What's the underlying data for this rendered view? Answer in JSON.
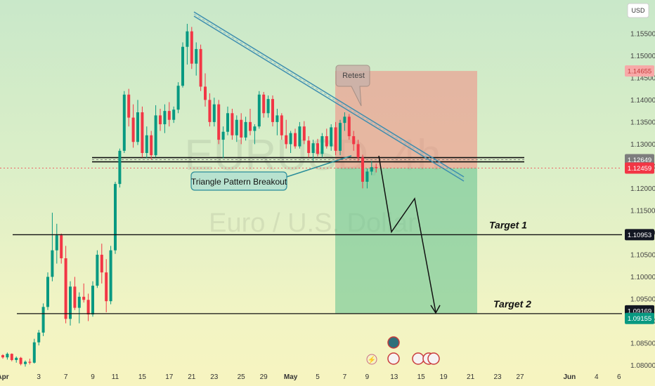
{
  "chart_data": {
    "type": "candlestick",
    "currency": "USD",
    "watermark": {
      "symbol": "EURUSD, 4h",
      "description": "Euro / U.S. Dollar"
    },
    "y_axis": {
      "range": [
        1.0785,
        1.161
      ],
      "ticks": [
        "1.15500",
        "1.15000",
        "1.14500",
        "1.14000",
        "1.13500",
        "1.13000",
        "1.12500",
        "1.12000",
        "1.11500",
        "1.11000",
        "1.10500",
        "1.10000",
        "1.09500",
        "1.09000",
        "1.08500",
        "1.08000"
      ]
    },
    "x_axis": {
      "ticks": [
        {
          "label": "Apr",
          "bold": true,
          "index": 0
        },
        {
          "label": "3",
          "index": 8
        },
        {
          "label": "7",
          "index": 14
        },
        {
          "label": "9",
          "index": 20
        },
        {
          "label": "11",
          "index": 25
        },
        {
          "label": "15",
          "index": 31
        },
        {
          "label": "17",
          "index": 37
        },
        {
          "label": "21",
          "index": 42
        },
        {
          "label": "23",
          "index": 47
        },
        {
          "label": "25",
          "index": 53
        },
        {
          "label": "29",
          "index": 58
        },
        {
          "label": "May",
          "bold": true,
          "index": 64
        },
        {
          "label": "5",
          "index": 70
        },
        {
          "label": "7",
          "index": 76
        },
        {
          "label": "9",
          "index": 81
        },
        {
          "label": "13",
          "index": 87
        },
        {
          "label": "15",
          "index": 93
        },
        {
          "label": "19",
          "index": 98
        },
        {
          "label": "21",
          "index": 104
        },
        {
          "label": "23",
          "index": 110
        },
        {
          "label": "27",
          "index": 115
        },
        {
          "label": "Jun",
          "bold": true,
          "index": 126
        },
        {
          "label": "4",
          "index": 132
        },
        {
          "label": "6",
          "index": 137
        }
      ]
    },
    "candles": [
      [
        1.0823,
        1.0825,
        1.0815,
        1.0818
      ],
      [
        1.0818,
        1.0829,
        1.0813,
        1.0826
      ],
      [
        1.0826,
        1.0827,
        1.0809,
        1.0812
      ],
      [
        1.0812,
        1.082,
        1.0806,
        1.0817
      ],
      [
        1.0817,
        1.0819,
        1.08,
        1.0803
      ],
      [
        1.0803,
        1.0811,
        1.0797,
        1.0808
      ],
      [
        1.0808,
        1.0815,
        1.0802,
        1.0806
      ],
      [
        1.0806,
        1.086,
        1.0804,
        1.0852
      ],
      [
        1.0852,
        1.088,
        1.0845,
        1.0874
      ],
      [
        1.0874,
        1.094,
        1.0866,
        1.0932
      ],
      [
        1.0932,
        1.101,
        1.0925,
        1.1
      ],
      [
        1.1,
        1.1145,
        1.099,
        1.106
      ],
      [
        1.106,
        1.112,
        1.103,
        1.1094
      ],
      [
        1.1094,
        1.1098,
        1.103,
        1.1042
      ],
      [
        1.1042,
        1.107,
        1.0895,
        1.0905
      ],
      [
        1.0905,
        1.099,
        1.089,
        1.0978
      ],
      [
        1.0978,
        1.1,
        1.0925,
        1.093
      ],
      [
        1.093,
        1.0965,
        1.0895,
        1.0955
      ],
      [
        1.0955,
        1.0985,
        1.0942,
        1.0948
      ],
      [
        1.0948,
        1.0962,
        1.09,
        1.0915
      ],
      [
        1.0915,
        1.099,
        1.091,
        1.098
      ],
      [
        1.098,
        1.106,
        1.0975,
        1.105
      ],
      [
        1.105,
        1.1075,
        1.0985,
        1.101
      ],
      [
        1.101,
        1.104,
        1.092,
        1.0945
      ],
      [
        1.0945,
        1.107,
        1.0938,
        1.106
      ],
      [
        1.106,
        1.1215,
        1.1052,
        1.121
      ],
      [
        1.121,
        1.129,
        1.1202,
        1.1285
      ],
      [
        1.1285,
        1.142,
        1.128,
        1.1412
      ],
      [
        1.1412,
        1.1425,
        1.134,
        1.136
      ],
      [
        1.136,
        1.139,
        1.1292,
        1.1305
      ],
      [
        1.1305,
        1.14,
        1.1298,
        1.1372
      ],
      [
        1.1372,
        1.1385,
        1.127,
        1.128
      ],
      [
        1.128,
        1.134,
        1.1268,
        1.132
      ],
      [
        1.132,
        1.133,
        1.1265,
        1.1275
      ],
      [
        1.1275,
        1.1388,
        1.127,
        1.1365
      ],
      [
        1.1365,
        1.138,
        1.133,
        1.1345
      ],
      [
        1.1345,
        1.139,
        1.1325,
        1.1375
      ],
      [
        1.1375,
        1.1395,
        1.134,
        1.1355
      ],
      [
        1.1355,
        1.1385,
        1.1348,
        1.1378
      ],
      [
        1.1378,
        1.144,
        1.137,
        1.1432
      ],
      [
        1.1432,
        1.153,
        1.1428,
        1.152
      ],
      [
        1.152,
        1.1572,
        1.148,
        1.1555
      ],
      [
        1.1555,
        1.1565,
        1.147,
        1.1482
      ],
      [
        1.1482,
        1.153,
        1.1455,
        1.1515
      ],
      [
        1.1515,
        1.1525,
        1.142,
        1.143
      ],
      [
        1.143,
        1.146,
        1.1385,
        1.14
      ],
      [
        1.14,
        1.1415,
        1.134,
        1.135
      ],
      [
        1.135,
        1.1405,
        1.134,
        1.139
      ],
      [
        1.139,
        1.14,
        1.13,
        1.131
      ],
      [
        1.131,
        1.134,
        1.1268,
        1.1328
      ],
      [
        1.1328,
        1.1385,
        1.132,
        1.137
      ],
      [
        1.137,
        1.138,
        1.131,
        1.132
      ],
      [
        1.132,
        1.1365,
        1.1305,
        1.1355
      ],
      [
        1.1355,
        1.137,
        1.13,
        1.1315
      ],
      [
        1.1315,
        1.1362,
        1.1308,
        1.135
      ],
      [
        1.135,
        1.138,
        1.132,
        1.133
      ],
      [
        1.133,
        1.1345,
        1.13,
        1.134
      ],
      [
        1.134,
        1.142,
        1.1335,
        1.1412
      ],
      [
        1.1412,
        1.1418,
        1.136,
        1.137
      ],
      [
        1.137,
        1.141,
        1.136,
        1.1402
      ],
      [
        1.1402,
        1.141,
        1.134,
        1.135
      ],
      [
        1.135,
        1.138,
        1.132,
        1.1365
      ],
      [
        1.1365,
        1.137,
        1.131,
        1.132
      ],
      [
        1.132,
        1.1355,
        1.129,
        1.13
      ],
      [
        1.13,
        1.133,
        1.128,
        1.1325
      ],
      [
        1.1325,
        1.1335,
        1.129,
        1.1295
      ],
      [
        1.1295,
        1.135,
        1.129,
        1.134
      ],
      [
        1.134,
        1.1352,
        1.13,
        1.1308
      ],
      [
        1.1308,
        1.1318,
        1.127,
        1.128
      ],
      [
        1.128,
        1.131,
        1.1262,
        1.1302
      ],
      [
        1.1302,
        1.1312,
        1.1272,
        1.1278
      ],
      [
        1.1278,
        1.1325,
        1.127,
        1.1318
      ],
      [
        1.1318,
        1.1335,
        1.129,
        1.1295
      ],
      [
        1.1295,
        1.1345,
        1.1285,
        1.1338
      ],
      [
        1.1338,
        1.135,
        1.1275,
        1.1285
      ],
      [
        1.1285,
        1.1355,
        1.1275,
        1.1348
      ],
      [
        1.1348,
        1.1372,
        1.133,
        1.1362
      ],
      [
        1.1362,
        1.1368,
        1.131,
        1.1318
      ],
      [
        1.1318,
        1.133,
        1.1285,
        1.13
      ],
      [
        1.13,
        1.131,
        1.1262,
        1.127
      ],
      [
        1.127,
        1.1276,
        1.12,
        1.1215
      ],
      [
        1.1215,
        1.1245,
        1.12,
        1.1238
      ],
      [
        1.1238,
        1.1262,
        1.123,
        1.1248
      ],
      [
        1.1248,
        1.1256,
        1.1236,
        1.1246
      ]
    ],
    "horizontal_levels": [
      {
        "name": "Target 1",
        "price": 1.10953
      },
      {
        "name": "Target 2",
        "price": 1.09169
      }
    ],
    "price_tags": [
      {
        "value": "1.14655",
        "price": 1.14655,
        "bg": "#f7a9a8",
        "fg": "#c43a3a"
      },
      {
        "value": "1.12649",
        "price": 1.12649,
        "bg": "#7d7d7d",
        "fg": "#ffffff"
      },
      {
        "value": "1.12459",
        "price": 1.12459,
        "bg": "#f23645",
        "fg": "#ffffff"
      },
      {
        "value": "1.10953",
        "price": 1.10953,
        "bg": "#131722",
        "fg": "#ffffff"
      },
      {
        "value": "1.09169",
        "price": 1.09169,
        "bg": "#131722",
        "fg": "#ffffff"
      },
      {
        "value": "1.09155",
        "price": 1.09155,
        "bg": "#089981",
        "fg": "#ffffff"
      }
    ],
    "position": {
      "type": "short",
      "stop_price": 1.14655,
      "entry_price": 1.12459,
      "target_price": 1.09169
    },
    "annotations": {
      "retest": "Retest",
      "breakout": "Triangle Pattern Breakout"
    },
    "colors": {
      "up": "#089981",
      "down": "#f23645",
      "stop_zone": "#f28b82",
      "profit_zone": "#6cc593",
      "trendline": "#3e8eb0"
    }
  }
}
